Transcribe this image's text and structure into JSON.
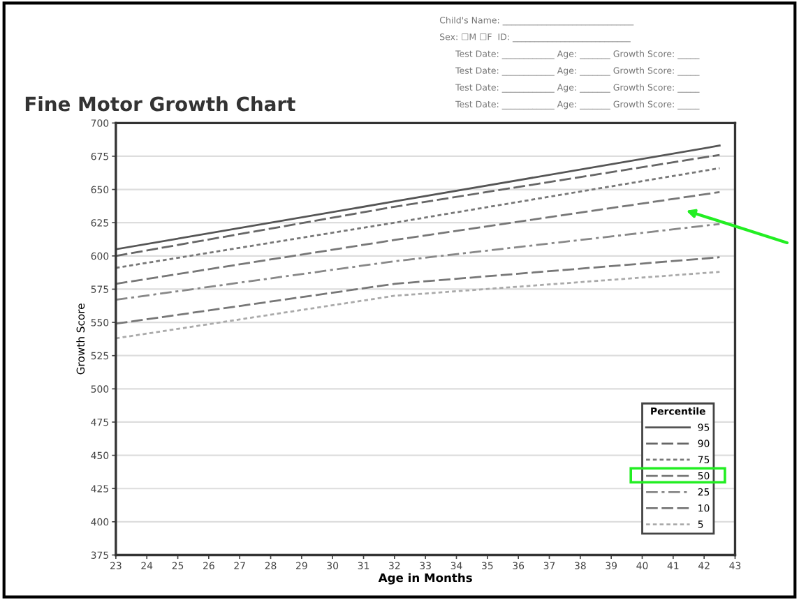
{
  "chart_data": {
    "type": "line",
    "title": "Fine Motor Growth Chart",
    "xlabel": "Age in Months",
    "ylabel": "Growth Score",
    "legend_title": "Percentile",
    "annotations": [
      "Child's Name: ______________________________",
      "Sex: ☐M ☐F  ID: ___________________________",
      "Test Date: ____________ Age: _______ Growth Score: _____",
      "Test Date: ____________ Age: _______ Growth Score: _____",
      "Test Date: ____________ Age: _______ Growth Score: _____",
      "Test Date: ____________ Age: _______ Growth Score: _____"
    ],
    "x": [
      23,
      32,
      42.5
    ],
    "series": [
      {
        "name": "95",
        "color": "#555555",
        "line_style": "solid",
        "values": [
          605,
          641,
          683
        ]
      },
      {
        "name": "90",
        "color": "#666666",
        "line_style": "dashed",
        "values": [
          600,
          637,
          676
        ]
      },
      {
        "name": "75",
        "color": "#777777",
        "line_style": "dotted",
        "values": [
          591,
          625,
          666
        ]
      },
      {
        "name": "50",
        "color": "#777777",
        "line_style": "dashed",
        "values": [
          579,
          612,
          648
        ]
      },
      {
        "name": "25",
        "color": "#888888",
        "line_style": "dashdot",
        "values": [
          567,
          596,
          624
        ]
      },
      {
        "name": "10",
        "color": "#777777",
        "line_style": "dashed",
        "values": [
          549,
          579,
          599
        ]
      },
      {
        "name": "5",
        "color": "#aaaaaa",
        "line_style": "dotted",
        "values": [
          538,
          570,
          588
        ]
      }
    ],
    "xlim": [
      23,
      43
    ],
    "xticks": [
      23,
      24,
      25,
      26,
      27,
      28,
      29,
      30,
      31,
      32,
      33,
      34,
      35,
      36,
      37,
      38,
      39,
      40,
      41,
      42,
      43
    ],
    "ylim": [
      375,
      700
    ],
    "yticks": [
      375,
      400,
      425,
      450,
      475,
      500,
      525,
      550,
      575,
      600,
      625,
      650,
      675,
      700
    ],
    "grid": "y",
    "legend": "bottom right",
    "marker": "none"
  }
}
